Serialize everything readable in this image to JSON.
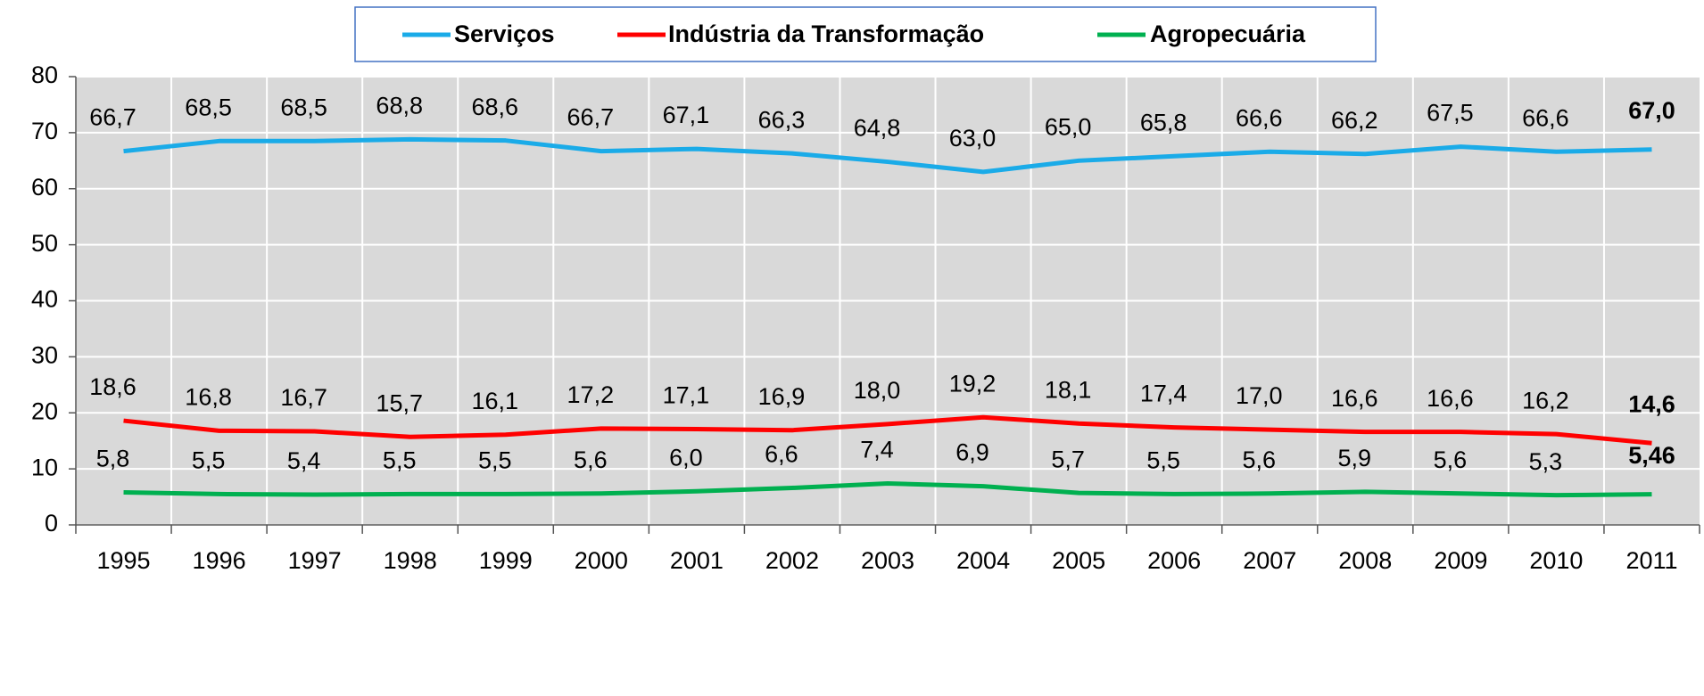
{
  "chart_data": {
    "type": "line",
    "categories": [
      "1995",
      "1996",
      "1997",
      "1998",
      "1999",
      "2000",
      "2001",
      "2002",
      "2003",
      "2004",
      "2005",
      "2006",
      "2007",
      "2008",
      "2009",
      "2010",
      "2011"
    ],
    "series": [
      {
        "name": "Serviços",
        "color": "#1aabe8",
        "values": [
          66.7,
          68.5,
          68.5,
          68.8,
          68.6,
          66.7,
          67.1,
          66.3,
          64.8,
          63.0,
          65.0,
          65.8,
          66.6,
          66.2,
          67.5,
          66.6,
          67.0
        ],
        "value_labels": [
          "66,7",
          "68,5",
          "68,5",
          "68,8",
          "68,6",
          "66,7",
          "67,1",
          "66,3",
          "64,8",
          "63,0",
          "65,0",
          "65,8",
          "66,6",
          "66,2",
          "67,5",
          "66,6",
          "67,0"
        ]
      },
      {
        "name": "Indústria da Transformação",
        "color": "#ff0000",
        "values": [
          18.6,
          16.8,
          16.7,
          15.7,
          16.1,
          17.2,
          17.1,
          16.9,
          18.0,
          19.2,
          18.1,
          17.4,
          17.0,
          16.6,
          16.6,
          16.2,
          14.6
        ],
        "value_labels": [
          "18,6",
          "16,8",
          "16,7",
          "15,7",
          "16,1",
          "17,2",
          "17,1",
          "16,9",
          "18,0",
          "19,2",
          "18,1",
          "17,4",
          "17,0",
          "16,6",
          "16,6",
          "16,2",
          "14,6"
        ]
      },
      {
        "name": "Agropecuária",
        "color": "#00b050",
        "values": [
          5.8,
          5.5,
          5.4,
          5.5,
          5.5,
          5.6,
          6.0,
          6.6,
          7.4,
          6.9,
          5.7,
          5.5,
          5.6,
          5.9,
          5.6,
          5.3,
          5.46
        ],
        "value_labels": [
          "5,8",
          "5,5",
          "5,4",
          "5,5",
          "5,5",
          "5,6",
          "6,0",
          "6,6",
          "7,4",
          "6,9",
          "5,7",
          "5,5",
          "5,6",
          "5,9",
          "5,6",
          "5,3",
          "5,46"
        ]
      }
    ],
    "ylim": [
      0,
      80
    ],
    "yticks": [
      0,
      10,
      20,
      30,
      40,
      50,
      60,
      70,
      80
    ],
    "grid": true,
    "legend": "top"
  }
}
